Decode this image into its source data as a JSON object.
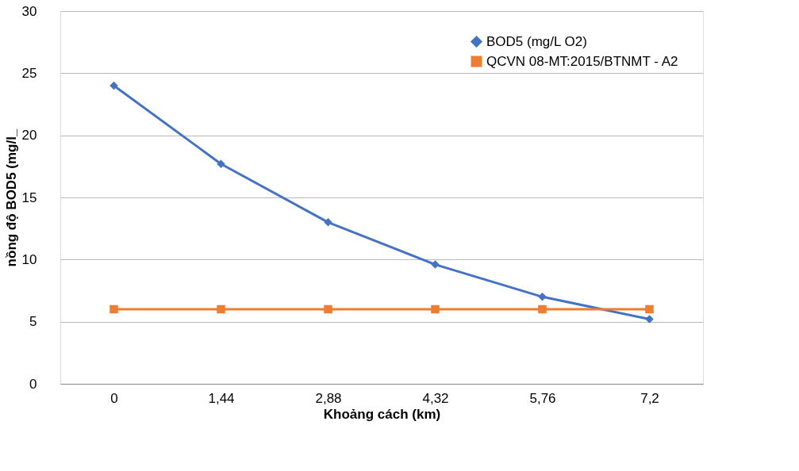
{
  "chart_data": {
    "type": "line",
    "xlabel": "Khoảng cách (km)",
    "ylabel": "nồng độ BOD5 (mg/l_",
    "categories": [
      "0",
      "1,44",
      "2,88",
      "4,32",
      "5,76",
      "7,2"
    ],
    "series": [
      {
        "name": "BOD5 (mg/L O2)",
        "color": "#4472c4",
        "marker": "diamond",
        "values": [
          24,
          17.7,
          13,
          9.6,
          7,
          5.2
        ]
      },
      {
        "name": "QCVN 08-MT:2015/BTNMT - A2",
        "color": "#ed7d31",
        "marker": "square",
        "values": [
          6,
          6,
          6,
          6,
          6,
          6
        ]
      }
    ],
    "ylim": [
      0,
      30
    ],
    "yticks": [
      0,
      5,
      10,
      15,
      20,
      25,
      30
    ],
    "grid": "y",
    "legend": "top right",
    "line_style": "solid"
  }
}
